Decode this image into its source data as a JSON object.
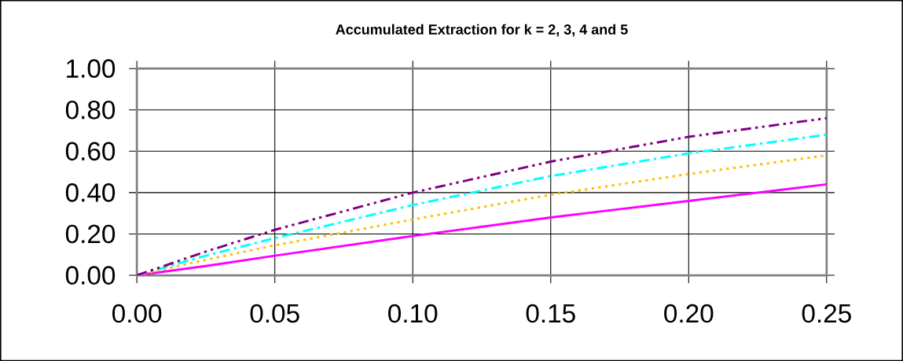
{
  "chart_data": {
    "type": "line",
    "title": "Accumulated Extraction for k = 2, 3, 4 and 5",
    "x": [
      0,
      0.025,
      0.05,
      0.1,
      0.15,
      0.2,
      0.25
    ],
    "series": [
      {
        "color": "#ff00ff",
        "line_style": "solid",
        "values": [
          0,
          0.045,
          0.095,
          0.19,
          0.28,
          0.36,
          0.44
        ]
      },
      {
        "color": "#ffc000",
        "line_style": "dotted",
        "values": [
          0,
          0.075,
          0.145,
          0.27,
          0.39,
          0.49,
          0.58
        ]
      },
      {
        "color": "#00ffff",
        "line_style": "dashdot",
        "values": [
          0,
          0.095,
          0.18,
          0.34,
          0.48,
          0.59,
          0.68
        ]
      },
      {
        "color": "#800080",
        "line_style": "dashdotdot",
        "values": [
          0,
          0.115,
          0.22,
          0.4,
          0.55,
          0.67,
          0.76
        ]
      }
    ],
    "xlim": [
      0,
      0.25
    ],
    "ylim": [
      0,
      1
    ],
    "xticks": [
      {
        "value": 0,
        "label": "0.00"
      },
      {
        "value": 0.05,
        "label": "0.05"
      },
      {
        "value": 0.1,
        "label": "0.10"
      },
      {
        "value": 0.15,
        "label": "0.15"
      },
      {
        "value": 0.2,
        "label": "0.20"
      },
      {
        "value": 0.25,
        "label": "0.25"
      }
    ],
    "yticks": [
      {
        "value": 0,
        "label": "0.00"
      },
      {
        "value": 0.2,
        "label": "0.20"
      },
      {
        "value": 0.4,
        "label": "0.40"
      },
      {
        "value": 0.6,
        "label": "0.60"
      },
      {
        "value": 0.8,
        "label": "0.80"
      },
      {
        "value": 1,
        "label": "1.00"
      }
    ],
    "grid": true,
    "marker": "none"
  }
}
